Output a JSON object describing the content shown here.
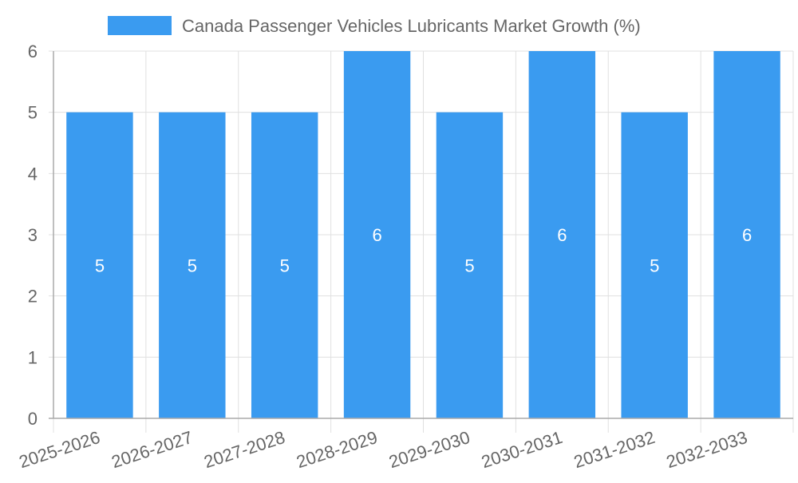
{
  "chart_data": {
    "type": "bar",
    "title": "",
    "xlabel": "",
    "ylabel": "",
    "legend": {
      "position": "top-center",
      "entries": [
        "Canada Passenger Vehicles Lubricants Market Growth (%)"
      ]
    },
    "categories": [
      "2025-2026",
      "2026-2027",
      "2027-2028",
      "2028-2029",
      "2029-2030",
      "2030-2031",
      "2031-2032",
      "2032-2033"
    ],
    "series": [
      {
        "name": "Canada Passenger Vehicles Lubricants Market Growth (%)",
        "values": [
          5,
          5,
          5,
          6,
          5,
          6,
          5,
          6
        ],
        "color": "#3a9bf0"
      }
    ],
    "data_labels": [
      "5",
      "5",
      "5",
      "6",
      "5",
      "6",
      "5",
      "6"
    ],
    "ylim": [
      0,
      6
    ],
    "yticks": [
      0,
      1,
      2,
      3,
      4,
      5,
      6
    ],
    "ytick_labels": [
      "0",
      "1",
      "2",
      "3",
      "4",
      "5",
      "6"
    ],
    "grid": true,
    "colors": {
      "bar": "#3a9bf0",
      "grid": "#e0e0e0",
      "axis": "#aaaaaa",
      "text": "#666666",
      "label": "#ffffff"
    }
  }
}
